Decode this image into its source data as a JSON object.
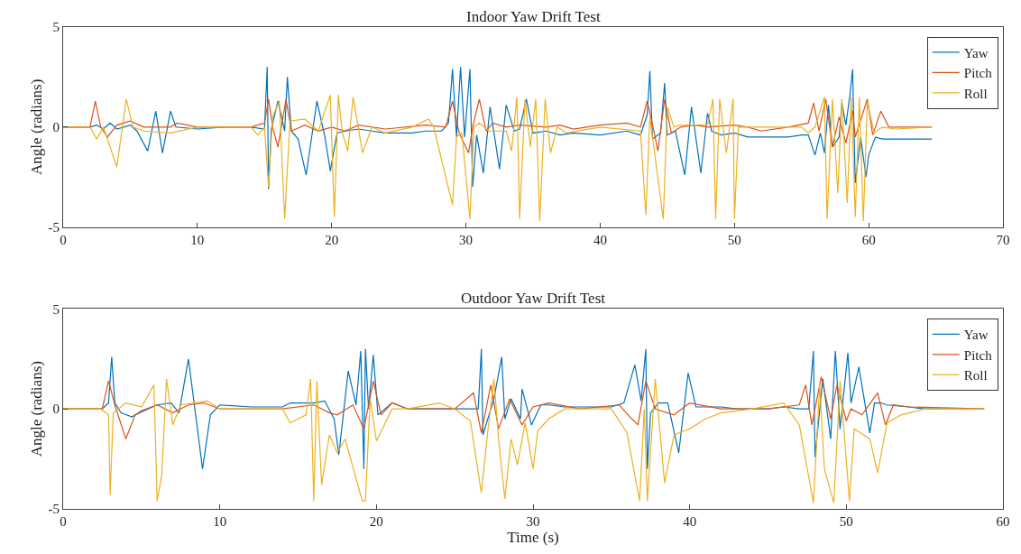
{
  "chart_data": [
    {
      "type": "line",
      "title": "Indoor Yaw Drift Test",
      "ylabel": "Angle (radians)",
      "xlim": [
        0,
        70
      ],
      "xticks": [
        0,
        10,
        20,
        30,
        40,
        50,
        60,
        70
      ],
      "ylim": [
        -5,
        5
      ],
      "yticks": [
        -5,
        0,
        5
      ],
      "legend": "top right",
      "series": [
        {
          "name": "Yaw",
          "color": "#0072bd",
          "x": [
            0,
            2,
            2.5,
            3,
            3.5,
            4,
            5,
            5.5,
            6.3,
            6.9,
            7.4,
            8,
            8.4,
            10,
            12,
            14,
            15,
            15.2,
            15.3,
            15.5,
            16,
            16.5,
            16.7,
            17,
            17.5,
            18.1,
            18.9,
            19.5,
            19.9,
            20.4,
            21,
            22,
            23,
            24,
            25,
            26,
            27,
            28.2,
            28.7,
            29,
            29.3,
            29.6,
            29.9,
            30.3,
            30.5,
            30.8,
            31.3,
            31.8,
            32.5,
            33,
            33.6,
            34,
            34.5,
            35,
            36,
            37,
            38,
            40,
            42,
            43,
            43.5,
            43.7,
            43.9,
            44.5,
            44.8,
            45,
            45.6,
            46.3,
            46.8,
            47.5,
            48,
            48.3,
            49,
            50,
            51,
            52,
            54,
            55,
            55.5,
            56,
            56.4,
            56.7,
            57,
            57.3,
            57.8,
            58,
            58.3,
            58.6,
            58.8,
            59,
            59.4,
            59.8,
            60,
            60.5,
            61,
            61.5,
            62,
            63,
            64.7
          ],
          "values": [
            0,
            0,
            0.1,
            -0.1,
            0.2,
            -0.1,
            0.1,
            -0.2,
            -1.2,
            0.8,
            -1.3,
            0.8,
            0,
            -0.1,
            0,
            0,
            -0.1,
            3.0,
            -3.1,
            -0.1,
            1.3,
            -0.2,
            2.5,
            -0.2,
            -0.6,
            -2.4,
            1.3,
            -0.5,
            -2.2,
            -0.3,
            -0.2,
            -0.1,
            -0.2,
            -0.3,
            -0.3,
            -0.3,
            -0.2,
            -0.2,
            0.2,
            2.9,
            -0.5,
            3.0,
            -0.5,
            2.9,
            -3.0,
            -0.4,
            -2.3,
            1.0,
            -2.1,
            1.1,
            -0.2,
            -0.1,
            1.4,
            -0.3,
            -0.2,
            -0.4,
            -0.3,
            -0.4,
            -0.2,
            -0.4,
            0.6,
            2.8,
            -0.6,
            -0.3,
            2.2,
            -0.4,
            -0.2,
            -2.4,
            1.0,
            -2.3,
            0.7,
            -0.2,
            -0.4,
            -0.3,
            -0.5,
            -0.5,
            -0.5,
            -0.4,
            -0.4,
            -1.4,
            -0.3,
            -1.3,
            1.1,
            -1.0,
            -0.5,
            1.2,
            0.1,
            1.6,
            2.9,
            -2.8,
            -0.5,
            -2.5,
            -1.4,
            -0.5,
            -0.6,
            -0.6,
            -0.6,
            -0.6,
            -0.6
          ]
        },
        {
          "name": "Pitch",
          "color": "#d95319",
          "x": [
            0,
            2,
            2.4,
            2.8,
            3.3,
            4,
            5,
            6,
            8,
            8.5,
            10,
            14,
            15,
            15.3,
            15.6,
            16,
            16.6,
            17,
            18,
            19,
            20,
            21,
            22,
            24,
            27,
            28.5,
            29,
            29.5,
            30.2,
            30.5,
            31,
            31.5,
            32,
            33,
            34,
            36,
            37,
            38,
            40,
            42,
            43,
            43.5,
            44,
            44.3,
            44.8,
            45.3,
            46,
            47,
            48,
            50,
            51,
            52,
            54,
            55.5,
            55.9,
            56.3,
            56.8,
            57.3,
            57.8,
            58.3,
            58.8,
            59,
            59.9,
            60.3,
            60.9,
            61.5,
            62,
            64.7
          ],
          "values": [
            0,
            0,
            1.3,
            0,
            -0.5,
            0.1,
            0.3,
            0,
            0,
            0.2,
            0,
            0,
            0.2,
            1.4,
            0,
            -1.0,
            1.4,
            -0.2,
            0.1,
            -0.2,
            0,
            -0.2,
            0.1,
            -0.1,
            0.1,
            0,
            1.3,
            -0.3,
            -1.3,
            0,
            1.4,
            -0.2,
            0.2,
            0,
            0.1,
            0,
            0.1,
            -0.1,
            0.1,
            0.2,
            0,
            1.3,
            -0.2,
            -1.2,
            1.4,
            -0.3,
            0,
            0.1,
            0,
            0.1,
            0,
            -0.2,
            0,
            0.2,
            1.2,
            -0.2,
            1.4,
            -1.0,
            0.5,
            -0.8,
            0.8,
            -0.5,
            1.4,
            -0.4,
            0.8,
            0,
            0,
            0
          ]
        },
        {
          "name": "Roll",
          "color": "#edb120",
          "x": [
            0,
            2,
            2.5,
            3,
            4,
            4.7,
            5.2,
            6,
            8,
            10,
            14,
            14.5,
            15,
            15.3,
            15.6,
            16.1,
            16.5,
            16.9,
            18,
            19,
            19.9,
            20.2,
            20.5,
            20.8,
            21.2,
            21.6,
            22.3,
            23,
            24,
            26,
            27.2,
            27.6,
            29,
            29.3,
            29.7,
            30.3,
            30.6,
            31,
            31.7,
            33,
            33.4,
            33.8,
            34,
            34.4,
            34.8,
            35.2,
            35.5,
            35.9,
            36.3,
            36.8,
            37.5,
            40,
            43,
            43.4,
            43.7,
            44.7,
            45,
            45.5,
            46,
            48,
            48.4,
            48.6,
            48.9,
            49.4,
            49.9,
            50,
            50.3,
            51,
            54,
            55,
            55.5,
            56,
            56.7,
            56.9,
            57.3,
            57.7,
            58,
            58.4,
            58.7,
            59,
            59.3,
            59.6,
            59.9,
            60.4,
            61,
            62,
            64.7
          ],
          "values": [
            0,
            0,
            -0.6,
            0,
            -2.0,
            1.4,
            0,
            -0.2,
            -0.3,
            0,
            0,
            -0.4,
            0,
            -3.0,
            0.5,
            1.3,
            -4.6,
            0.3,
            0.4,
            -0.2,
            1.6,
            -4.5,
            1.6,
            -0.3,
            -1.2,
            1.5,
            -1.3,
            0,
            -0.3,
            0,
            0.4,
            0,
            -3.9,
            -0.5,
            -0.3,
            -4.6,
            0,
            0.2,
            -0.2,
            -0.2,
            -1.2,
            1.5,
            -4.6,
            1.4,
            -1.0,
            1.4,
            -4.7,
            1.4,
            -1.3,
            0,
            -0.3,
            0,
            -0.2,
            -4.4,
            0.5,
            -4.6,
            1.0,
            0,
            0.1,
            0.1,
            1.4,
            -4.6,
            1.4,
            -1.3,
            1.4,
            -4.6,
            0,
            0,
            0,
            0,
            -0.3,
            0,
            1.5,
            -4.6,
            1.4,
            -3.3,
            1.4,
            -3.8,
            1.5,
            -4.5,
            1.5,
            -4.7,
            1.3,
            -0.3,
            0,
            -0.1,
            0
          ]
        }
      ]
    },
    {
      "type": "line",
      "title": "Outdoor Yaw Drift Test",
      "xlabel": "Time (s)",
      "ylabel": "Angle (radians)",
      "xlim": [
        0,
        60
      ],
      "xticks": [
        0,
        10,
        20,
        30,
        40,
        50,
        60
      ],
      "ylim": [
        -5,
        5
      ],
      "yticks": [
        -5,
        0,
        5
      ],
      "legend": "top right",
      "series": [
        {
          "name": "Yaw",
          "color": "#0072bd",
          "x": [
            0,
            2.5,
            2.9,
            3.1,
            3.3,
            3.7,
            4.4,
            5,
            6,
            6.9,
            7.4,
            8.0,
            8.9,
            9.4,
            10,
            12,
            14,
            14.5,
            16,
            16.7,
            17.3,
            17.6,
            18.2,
            18.7,
            19,
            19.2,
            19.3,
            19.5,
            19.8,
            20.1,
            21,
            22,
            25,
            26.5,
            26.7,
            26.8,
            27.5,
            28,
            28.2,
            28.6,
            29.2,
            29.3,
            29.9,
            30.5,
            31,
            32,
            34,
            35,
            35.8,
            36.5,
            36.9,
            37.2,
            37.3,
            37.5,
            38,
            38.6,
            39.3,
            39.9,
            40.4,
            42,
            43,
            45,
            46,
            47,
            47.6,
            47.9,
            48,
            48.5,
            49,
            49.3,
            49.6,
            50.1,
            50.3,
            50.8,
            51.5,
            51.8,
            52.2,
            52.6,
            54,
            55,
            58.8
          ],
          "values": [
            0,
            0,
            0.3,
            2.6,
            0.3,
            -0.2,
            -0.4,
            -0.1,
            0.2,
            0.3,
            -0.2,
            2.5,
            -3.0,
            -0.3,
            0.2,
            0.1,
            0.1,
            0.3,
            0.3,
            0.4,
            -0.5,
            -2.3,
            1.9,
            0.2,
            2.9,
            -3.0,
            3.0,
            0,
            2.7,
            -0.3,
            0.3,
            0,
            0,
            0,
            3.0,
            -1.3,
            0.5,
            2.6,
            -0.5,
            0.5,
            -0.5,
            1.0,
            -0.8,
            0.2,
            0.2,
            0.1,
            0.1,
            0.1,
            0.3,
            2.2,
            0.4,
            3.0,
            -3.0,
            -0.2,
            0.3,
            0.3,
            -2.2,
            1.8,
            0.1,
            0.1,
            0,
            0,
            0.1,
            0,
            0,
            2.9,
            -2.4,
            1.5,
            -1.5,
            2.9,
            -1.0,
            2.8,
            0.3,
            2.1,
            -1.2,
            0.3,
            0.3,
            0.2,
            0.1,
            0,
            0
          ]
        },
        {
          "name": "Pitch",
          "color": "#d95319",
          "x": [
            0,
            2.5,
            2.9,
            3.3,
            4,
            4.6,
            6,
            7,
            8,
            9,
            10,
            14,
            16,
            17,
            17.5,
            18.5,
            19.2,
            19.8,
            20.3,
            21,
            22,
            25,
            26.2,
            26.7,
            27.3,
            27.8,
            28.5,
            29.3,
            30,
            31,
            33,
            35.5,
            36.3,
            36.7,
            37.2,
            37.8,
            39,
            40,
            42,
            45,
            47,
            47.4,
            47.8,
            48.4,
            49,
            49.4,
            50,
            50.3,
            51,
            52,
            52.5,
            53,
            54,
            58.8
          ],
          "values": [
            0,
            0,
            1.4,
            0.2,
            -1.5,
            -0.3,
            0.2,
            -0.2,
            0.2,
            0.3,
            0,
            0,
            0.2,
            -0.2,
            -0.3,
            0.2,
            -1.0,
            1.4,
            -0.3,
            0.3,
            0,
            0,
            0.8,
            -1.2,
            1.2,
            -1.0,
            0.5,
            -0.8,
            0.1,
            0.3,
            0,
            0.2,
            -0.5,
            -0.8,
            1.4,
            0,
            -0.3,
            0.3,
            0,
            0,
            0.2,
            1.2,
            -0.8,
            1.6,
            -0.5,
            1.2,
            -0.6,
            0,
            -0.3,
            0.8,
            -0.8,
            0.2,
            0.1,
            0
          ]
        },
        {
          "name": "Roll",
          "color": "#edb120",
          "x": [
            0,
            2.4,
            2.9,
            3,
            3.2,
            4,
            5,
            5.8,
            6,
            6.3,
            6.6,
            7,
            7.5,
            9.2,
            10,
            12,
            14,
            14.5,
            15.5,
            15.8,
            16,
            16.2,
            16.5,
            17,
            17.5,
            18,
            19.1,
            19.3,
            19.6,
            20,
            21,
            22,
            24,
            25,
            26,
            26.7,
            27.1,
            27.5,
            27.8,
            28.2,
            28.6,
            29,
            29.5,
            30,
            30.3,
            31,
            32,
            35,
            36,
            36.8,
            37.1,
            37.3,
            37.8,
            38.4,
            39,
            40,
            41,
            42,
            44,
            46,
            47,
            47.9,
            48.3,
            48.6,
            49.2,
            49.6,
            50.2,
            50.5,
            51.5,
            52,
            52.6,
            53.5,
            55,
            58.8
          ],
          "values": [
            0,
            0,
            -0.3,
            -4.3,
            -0.2,
            0.3,
            0.1,
            1.2,
            -4.6,
            -3.3,
            1.5,
            -0.8,
            0.2,
            0.4,
            0,
            0,
            0,
            -0.7,
            -0.3,
            1.5,
            -4.6,
            1.4,
            -3.8,
            -1.3,
            -2.2,
            -1.5,
            -4.6,
            -4.6,
            0.5,
            -1.6,
            0,
            0,
            0.3,
            0,
            -0.6,
            -4.2,
            -1.2,
            1.5,
            -1.5,
            -4.5,
            -1.5,
            -2.8,
            -0.7,
            -3.0,
            -1.1,
            -0.5,
            0,
            0,
            -1.2,
            -4.6,
            0,
            -4.6,
            1.5,
            -3.7,
            -1.3,
            -1.0,
            -0.5,
            -0.2,
            0,
            0.3,
            -0.8,
            -4.7,
            1.2,
            -3.0,
            -4.7,
            1.4,
            -4.6,
            -1.0,
            -1.5,
            -3.2,
            -0.7,
            -0.3,
            0,
            0
          ]
        }
      ]
    }
  ]
}
